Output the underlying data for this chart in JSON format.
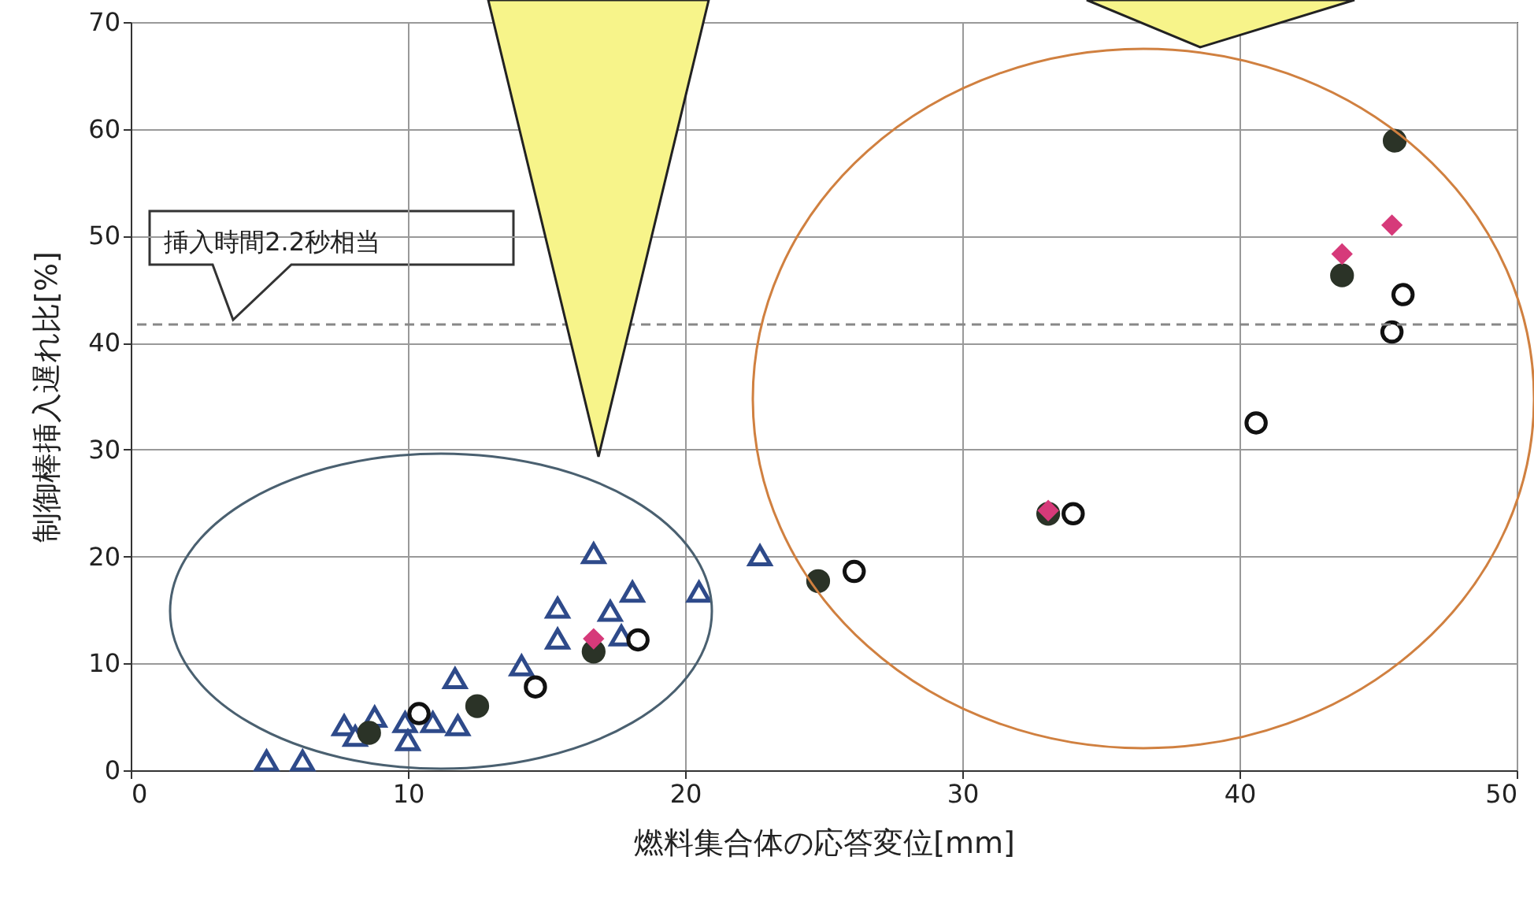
{
  "chart_data": {
    "type": "scatter",
    "xlabel": "燃料集合体の応答変位[mm]",
    "ylabel": "制御棒挿入遅れ比[%]",
    "xlim": [
      0,
      50
    ],
    "xticks": [
      0,
      10,
      20,
      30,
      40,
      50
    ],
    "ylim": [
      0,
      70
    ],
    "yticks": [
      0,
      10,
      20,
      30,
      40,
      50,
      60,
      70
    ],
    "grid": true,
    "series": [
      {
        "color": "#2e4a8a",
        "marker": "triangle",
        "x": [
          4.9,
          6.2,
          7.7,
          8.1,
          8.8,
          9.9,
          10.0,
          10.9,
          11.8,
          11.7,
          14.1,
          15.4,
          15.4,
          16.7,
          17.3,
          17.7,
          18.1,
          20.5,
          22.7
        ],
        "values": [
          0.9,
          0.9,
          4.2,
          3.2,
          5.0,
          4.5,
          2.8,
          4.5,
          4.2,
          8.6,
          9.8,
          12.3,
          15.2,
          20.3,
          14.9,
          12.6,
          16.7,
          16.7,
          20.1
        ]
      },
      {
        "color": "#2b3327",
        "marker": "circle",
        "x": [
          8.6,
          12.5,
          16.7,
          24.8,
          33.1,
          43.7,
          45.6
        ],
        "values": [
          3.5,
          6.0,
          11.1,
          17.7,
          24.0,
          46.3,
          58.9
        ]
      },
      {
        "color": "#d63a7a",
        "marker": "diamond",
        "x": [
          16.7,
          33.1,
          43.7,
          45.5
        ],
        "values": [
          12.3,
          24.3,
          48.3,
          51.0
        ]
      },
      {
        "color": "#111111",
        "marker": "circle",
        "x": [
          10.4,
          14.6,
          18.3,
          26.1,
          34.0,
          40.6,
          45.5,
          45.9
        ],
        "values": [
          5.3,
          7.8,
          12.2,
          18.6,
          24.0,
          32.5,
          41.0,
          44.5
        ]
      }
    ],
    "annotations": [
      {
        "text": "挿入時間2.2秒相当",
        "x": 3.7,
        "y": 41.7
      }
    ],
    "ref_lines": [
      {
        "axis": "y",
        "value": 41.7,
        "line_style": "dashed",
        "color": "#888888"
      }
    ]
  }
}
